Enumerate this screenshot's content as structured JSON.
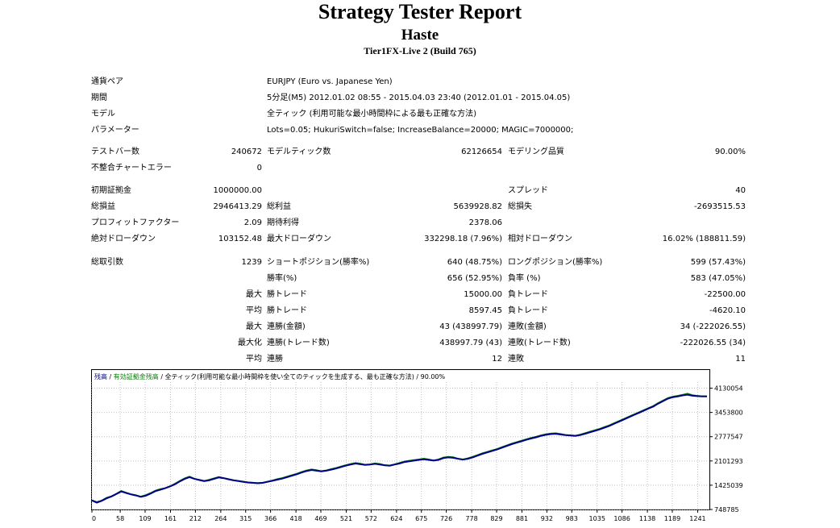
{
  "header": {
    "title": "Strategy Tester Report",
    "expert": "Haste",
    "server": "Tier1FX-Live 2 (Build 765)"
  },
  "info": {
    "symbol_label": "通貨ペア",
    "symbol_value": "EURJPY (Euro vs. Japanese Yen)",
    "period_label": "期間",
    "period_value": "5分足(M5) 2012.01.02 08:55 - 2015.04.03 23:40 (2012.01.01 - 2015.04.05)",
    "model_label": "モデル",
    "model_value": "全ティック (利用可能な最小時間枠による最も正確な方法)",
    "params_label": "パラメーター",
    "params_value": "Lots=0.05; HukuriSwitch=false; IncreaseBalance=20000; MAGIC=7000000;"
  },
  "stats": {
    "bars_label": "テストバー数",
    "bars_value": "240672",
    "ticks_label": "モデルティック数",
    "ticks_value": "62126654",
    "quality_label": "モデリング品質",
    "quality_value": "90.00%",
    "mismatch_label": "不整合チャートエラー",
    "mismatch_value": "0",
    "deposit_label": "初期証拠金",
    "deposit_value": "1000000.00",
    "spread_label": "スプレッド",
    "spread_value": "40",
    "netprofit_label": "総損益",
    "netprofit_value": "2946413.29",
    "grossprofit_label": "総利益",
    "grossprofit_value": "5639928.82",
    "grossloss_label": "総損失",
    "grossloss_value": "-2693515.53",
    "pf_label": "プロフィットファクター",
    "pf_value": "2.09",
    "payoff_label": "期待利得",
    "payoff_value": "2378.06",
    "absdd_label": "絶対ドローダウン",
    "absdd_value": "103152.48",
    "maxdd_label": "最大ドローダウン",
    "maxdd_value": "332298.18 (7.96%)",
    "reldd_label": "相対ドローダウン",
    "reldd_value": "16.02% (188811.59)",
    "trades_label": "総取引数",
    "trades_value": "1239",
    "short_label": "ショートポジション(勝率%)",
    "short_value": "640 (48.75%)",
    "long_label": "ロングポジション(勝率%)",
    "long_value": "599 (57.43%)",
    "win_label": "勝率(%)",
    "win_value": "656 (52.95%)",
    "loss_label": "負率 (%)",
    "loss_value": "583 (47.05%)",
    "max_label": "最大",
    "largest_win_label": "勝トレード",
    "largest_win_value": "15000.00",
    "largest_loss_label": "負トレード",
    "largest_loss_value": "-22500.00",
    "avg_label": "平均",
    "avg_win_label": "勝トレード",
    "avg_win_value": "8597.45",
    "avg_loss_label": "負トレード",
    "avg_loss_value": "-4620.10",
    "max2_label": "最大",
    "consec_win_money_label": "連勝(金額)",
    "consec_win_money_value": "43 (438997.79)",
    "consec_loss_money_label": "連敗(金額)",
    "consec_loss_money_value": "34 (-222026.55)",
    "maxi_label": "最大化",
    "consec_profit_label": "連勝(トレード数)",
    "consec_profit_value": "438997.79 (43)",
    "consec_lossmax_label": "連敗(トレード数)",
    "consec_lossmax_value": "-222026.55 (34)",
    "avg2_label": "平均",
    "avg_consec_win_label": "連勝",
    "avg_consec_win_value": "12",
    "avg_consec_loss_label": "連敗",
    "avg_consec_loss_value": "11"
  },
  "chart_legend": {
    "balance": "残高",
    "sep1": " / ",
    "equity": "有効証拠金残高",
    "rest": " / 全ティック(利用可能な最小時間枠を使い全てのティックを生成する、最も正確な方法) / 90.00%"
  },
  "chart_data": {
    "type": "line",
    "xlabel": "",
    "ylabel": "",
    "xlim": [
      0,
      1265
    ],
    "ylim": [
      748785,
      4300000
    ],
    "x_ticks": [
      0,
      58,
      109,
      161,
      212,
      264,
      315,
      366,
      418,
      469,
      521,
      572,
      624,
      675,
      726,
      778,
      829,
      881,
      932,
      983,
      1035,
      1086,
      1138,
      1189,
      1241
    ],
    "y_ticks": [
      748785,
      1425039,
      2101293,
      2777547,
      3453800,
      4130054
    ],
    "colors": {
      "balance": "#00008b",
      "equity": "#008000"
    },
    "series": [
      {
        "name": "残高",
        "x": [
          0,
          10,
          20,
          30,
          40,
          50,
          60,
          70,
          80,
          90,
          100,
          110,
          120,
          130,
          140,
          150,
          160,
          170,
          180,
          190,
          200,
          210,
          220,
          230,
          240,
          250,
          260,
          270,
          280,
          290,
          300,
          310,
          320,
          330,
          340,
          350,
          360,
          370,
          380,
          390,
          400,
          410,
          420,
          430,
          440,
          450,
          460,
          470,
          480,
          490,
          500,
          510,
          520,
          530,
          540,
          550,
          560,
          570,
          580,
          590,
          600,
          610,
          620,
          630,
          640,
          650,
          660,
          670,
          680,
          690,
          700,
          710,
          720,
          730,
          740,
          750,
          760,
          770,
          780,
          790,
          800,
          810,
          820,
          830,
          840,
          850,
          860,
          870,
          880,
          890,
          900,
          910,
          920,
          930,
          940,
          950,
          960,
          970,
          980,
          990,
          1000,
          1010,
          1020,
          1030,
          1040,
          1050,
          1060,
          1070,
          1080,
          1090,
          1100,
          1110,
          1120,
          1130,
          1140,
          1150,
          1160,
          1170,
          1180,
          1190,
          1200,
          1210,
          1220,
          1230,
          1240,
          1250,
          1260
        ],
        "values": [
          1000000,
          940000,
          990000,
          1060000,
          1110000,
          1180000,
          1250000,
          1210000,
          1170000,
          1140000,
          1100000,
          1130000,
          1190000,
          1260000,
          1300000,
          1340000,
          1390000,
          1450000,
          1530000,
          1600000,
          1650000,
          1600000,
          1570000,
          1540000,
          1560000,
          1600000,
          1640000,
          1620000,
          1590000,
          1560000,
          1540000,
          1520000,
          1500000,
          1490000,
          1480000,
          1490000,
          1520000,
          1550000,
          1580000,
          1610000,
          1650000,
          1690000,
          1730000,
          1780000,
          1820000,
          1850000,
          1830000,
          1810000,
          1830000,
          1860000,
          1890000,
          1930000,
          1970000,
          2000000,
          2030000,
          2010000,
          1990000,
          2000000,
          2020000,
          2000000,
          1980000,
          1970000,
          2000000,
          2030000,
          2070000,
          2090000,
          2110000,
          2130000,
          2150000,
          2130000,
          2110000,
          2130000,
          2180000,
          2200000,
          2190000,
          2160000,
          2140000,
          2160000,
          2200000,
          2250000,
          2300000,
          2340000,
          2380000,
          2420000,
          2470000,
          2520000,
          2570000,
          2610000,
          2650000,
          2690000,
          2730000,
          2760000,
          2800000,
          2830000,
          2850000,
          2860000,
          2840000,
          2820000,
          2810000,
          2800000,
          2820000,
          2860000,
          2900000,
          2940000,
          2980000,
          3030000,
          3080000,
          3140000,
          3200000,
          3260000,
          3320000,
          3380000,
          3440000,
          3500000,
          3560000,
          3620000,
          3700000,
          3770000,
          3840000,
          3880000,
          3900000,
          3930000,
          3950000,
          3920000,
          3910000,
          3900000,
          3900000
        ]
      },
      {
        "name": "有効証拠金残高",
        "x": [
          0,
          10,
          20,
          30,
          40,
          50,
          60,
          70,
          80,
          90,
          100,
          110,
          120,
          130,
          140,
          150,
          160,
          170,
          180,
          190,
          200,
          210,
          220,
          230,
          240,
          250,
          260,
          270,
          280,
          290,
          300,
          310,
          320,
          330,
          340,
          350,
          360,
          370,
          380,
          390,
          400,
          410,
          420,
          430,
          440,
          450,
          460,
          470,
          480,
          490,
          500,
          510,
          520,
          530,
          540,
          550,
          560,
          570,
          580,
          590,
          600,
          610,
          620,
          630,
          640,
          650,
          660,
          670,
          680,
          690,
          700,
          710,
          720,
          730,
          740,
          750,
          760,
          770,
          780,
          790,
          800,
          810,
          820,
          830,
          840,
          850,
          860,
          870,
          880,
          890,
          900,
          910,
          920,
          930,
          940,
          950,
          960,
          970,
          980,
          990,
          1000,
          1010,
          1020,
          1030,
          1040,
          1050,
          1060,
          1070,
          1080,
          1090,
          1100,
          1110,
          1120,
          1130,
          1140,
          1150,
          1160,
          1170,
          1180,
          1190,
          1200,
          1210,
          1220,
          1230,
          1240,
          1250,
          1260
        ],
        "values": [
          1010000,
          960000,
          1000000,
          1080000,
          1120000,
          1190000,
          1270000,
          1220000,
          1180000,
          1150000,
          1110000,
          1150000,
          1210000,
          1280000,
          1320000,
          1350000,
          1400000,
          1470000,
          1550000,
          1620000,
          1670000,
          1610000,
          1580000,
          1550000,
          1580000,
          1620000,
          1660000,
          1630000,
          1600000,
          1570000,
          1550000,
          1530000,
          1510000,
          1500000,
          1490000,
          1500000,
          1530000,
          1560000,
          1600000,
          1630000,
          1670000,
          1710000,
          1750000,
          1800000,
          1840000,
          1870000,
          1850000,
          1820000,
          1840000,
          1880000,
          1910000,
          1950000,
          1990000,
          2020000,
          2050000,
          2030000,
          2000000,
          2010000,
          2040000,
          2020000,
          1990000,
          1980000,
          2010000,
          2050000,
          2090000,
          2110000,
          2130000,
          2150000,
          2170000,
          2150000,
          2120000,
          2150000,
          2200000,
          2220000,
          2210000,
          2170000,
          2150000,
          2180000,
          2220000,
          2270000,
          2320000,
          2360000,
          2400000,
          2440000,
          2490000,
          2540000,
          2590000,
          2630000,
          2670000,
          2710000,
          2750000,
          2780000,
          2820000,
          2850000,
          2870000,
          2880000,
          2860000,
          2830000,
          2820000,
          2810000,
          2840000,
          2880000,
          2920000,
          2960000,
          3000000,
          3050000,
          3100000,
          3160000,
          3220000,
          3280000,
          3340000,
          3400000,
          3460000,
          3520000,
          3580000,
          3640000,
          3720000,
          3790000,
          3860000,
          3900000,
          3920000,
          3950000,
          3980000,
          3940000,
          3920000,
          3910000,
          3910000
        ]
      }
    ]
  }
}
